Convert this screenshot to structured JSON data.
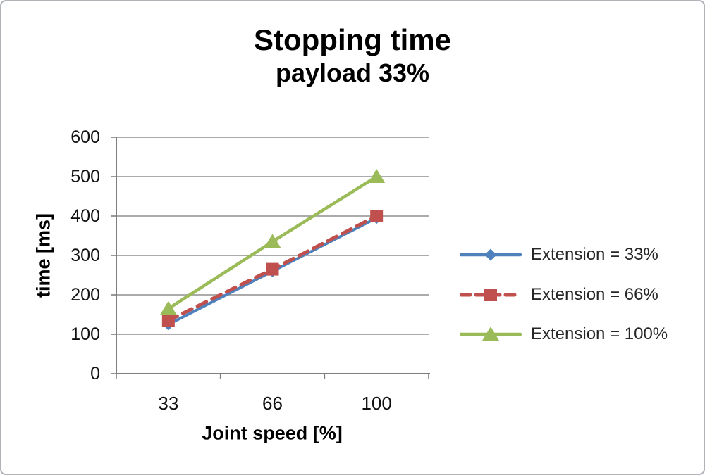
{
  "window": {
    "background": "#ffffff",
    "border_color": "#b0b4b8"
  },
  "chart_data": {
    "type": "line",
    "title": "Stopping time",
    "subtitle": "payload 33%",
    "xlabel": "Joint speed [%]",
    "ylabel": "time [ms]",
    "categories": [
      "33",
      "66",
      "100"
    ],
    "yticks": [
      0,
      100,
      200,
      300,
      400,
      500,
      600
    ],
    "ylim": [
      0,
      600
    ],
    "grid": true,
    "legend_position": "right",
    "series": [
      {
        "name": "Extension = 33%",
        "values": [
          125,
          260,
          395
        ],
        "color": "#4F81BD",
        "marker": "diamond",
        "dash": "solid",
        "width": 4
      },
      {
        "name": "Extension = 66%",
        "values": [
          135,
          265,
          400
        ],
        "color": "#C0504D",
        "marker": "square",
        "dash": "dashed",
        "width": 5
      },
      {
        "name": "Extension = 100%",
        "values": [
          165,
          335,
          500
        ],
        "color": "#9BBB59",
        "marker": "triangle",
        "dash": "solid",
        "width": 4.5
      }
    ],
    "colors": {
      "gridline": "#8f8f8f",
      "axis": "#7f7f7f",
      "tick_text": "#111111",
      "legend_text": "#262626",
      "title_text": "#000000"
    }
  }
}
